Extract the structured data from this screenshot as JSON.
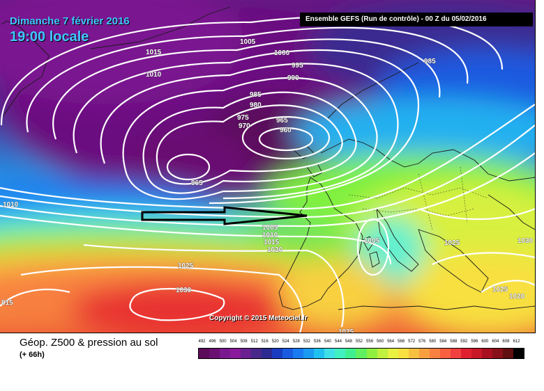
{
  "header": {
    "date_line": "Dimanche 7 février 2016",
    "time_line": "19:00 locale",
    "banner": "Ensemble GEFS  (Run de contrôle)  -  00 Z du 05/02/2016"
  },
  "map": {
    "copyright": "Copyright © 2015 Meteociel.fr",
    "isobar_labels": {
      "l1015a": "1015",
      "l1005a": "1005",
      "l1000": "1000",
      "l995": "995",
      "l990": "990",
      "l985a": "985",
      "l985b": "985",
      "l980": "980",
      "l975": "975",
      "l970": "970",
      "l965a": "965",
      "l960": "960",
      "l965b": "965",
      "l1010a": "1010",
      "l1010b": "1010",
      "l1005b": "1005",
      "l1010c": "1010",
      "l1015b": "1015",
      "l1020a": "1020",
      "l1025a": "1025",
      "l1030a": "1030",
      "l1015c": "015",
      "l1005c": "1005",
      "l1025b": "1025",
      "l1030b": "1030",
      "l1025c": "1025",
      "l1020b": "1020",
      "l1025d": "1025"
    }
  },
  "legend": {
    "title": "Géop. Z500 & pression au sol",
    "subtitle": "(+ 66h)",
    "scale_values": [
      "492",
      "496",
      "500",
      "504",
      "508",
      "512",
      "516",
      "520",
      "524",
      "528",
      "532",
      "536",
      "540",
      "544",
      "548",
      "552",
      "556",
      "560",
      "564",
      "568",
      "572",
      "576",
      "580",
      "584",
      "588",
      "592",
      "596",
      "600",
      "604",
      "608",
      "612"
    ],
    "scale_colors": [
      "#5a0b5a",
      "#6a1072",
      "#7a1890",
      "#8a1a9c",
      "#6a2090",
      "#48288a",
      "#2a2a90",
      "#1a3cc0",
      "#1a5ae0",
      "#1a7af0",
      "#1a9af0",
      "#20c0f0",
      "#40e0e8",
      "#40f0c0",
      "#40f090",
      "#60f060",
      "#90f040",
      "#c0f040",
      "#e8f040",
      "#f8e040",
      "#f8c040",
      "#f8a040",
      "#f88040",
      "#f86040",
      "#f04040",
      "#e02030",
      "#c81828",
      "#a81020",
      "#881018",
      "#601010",
      "#000000"
    ]
  }
}
